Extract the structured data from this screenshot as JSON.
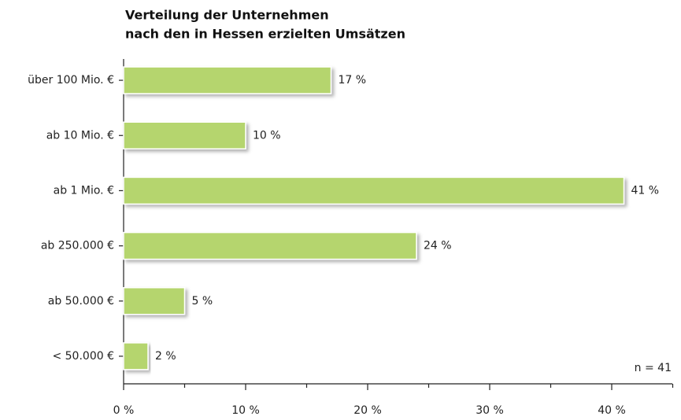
{
  "chart_data": {
    "type": "bar",
    "orientation": "horizontal",
    "title": [
      "Verteilung der Unternehmen",
      "nach den in Hessen erzielten Umsätzen"
    ],
    "categories": [
      "über 100 Mio. €",
      "ab 10 Mio. €",
      "ab 1 Mio. €",
      "ab 250.000 €",
      "ab 50.000 €",
      "< 50.000 €"
    ],
    "values": [
      17,
      10,
      41,
      24,
      5,
      2
    ],
    "value_labels": [
      "17 %",
      "10 %",
      "41 %",
      "24 %",
      "5 %",
      "2 %"
    ],
    "color": "#b5d56e",
    "xlim": [
      0,
      45
    ],
    "xticks": [
      {
        "value": 0,
        "label": "0 %"
      },
      {
        "value": 10,
        "label": "10 %"
      },
      {
        "value": 20,
        "label": "20 %"
      },
      {
        "value": 30,
        "label": "30 %"
      },
      {
        "value": 40,
        "label": "40 %"
      }
    ],
    "xminorticks": [
      5,
      15,
      25,
      35,
      45
    ],
    "annotation": "n = 41"
  }
}
